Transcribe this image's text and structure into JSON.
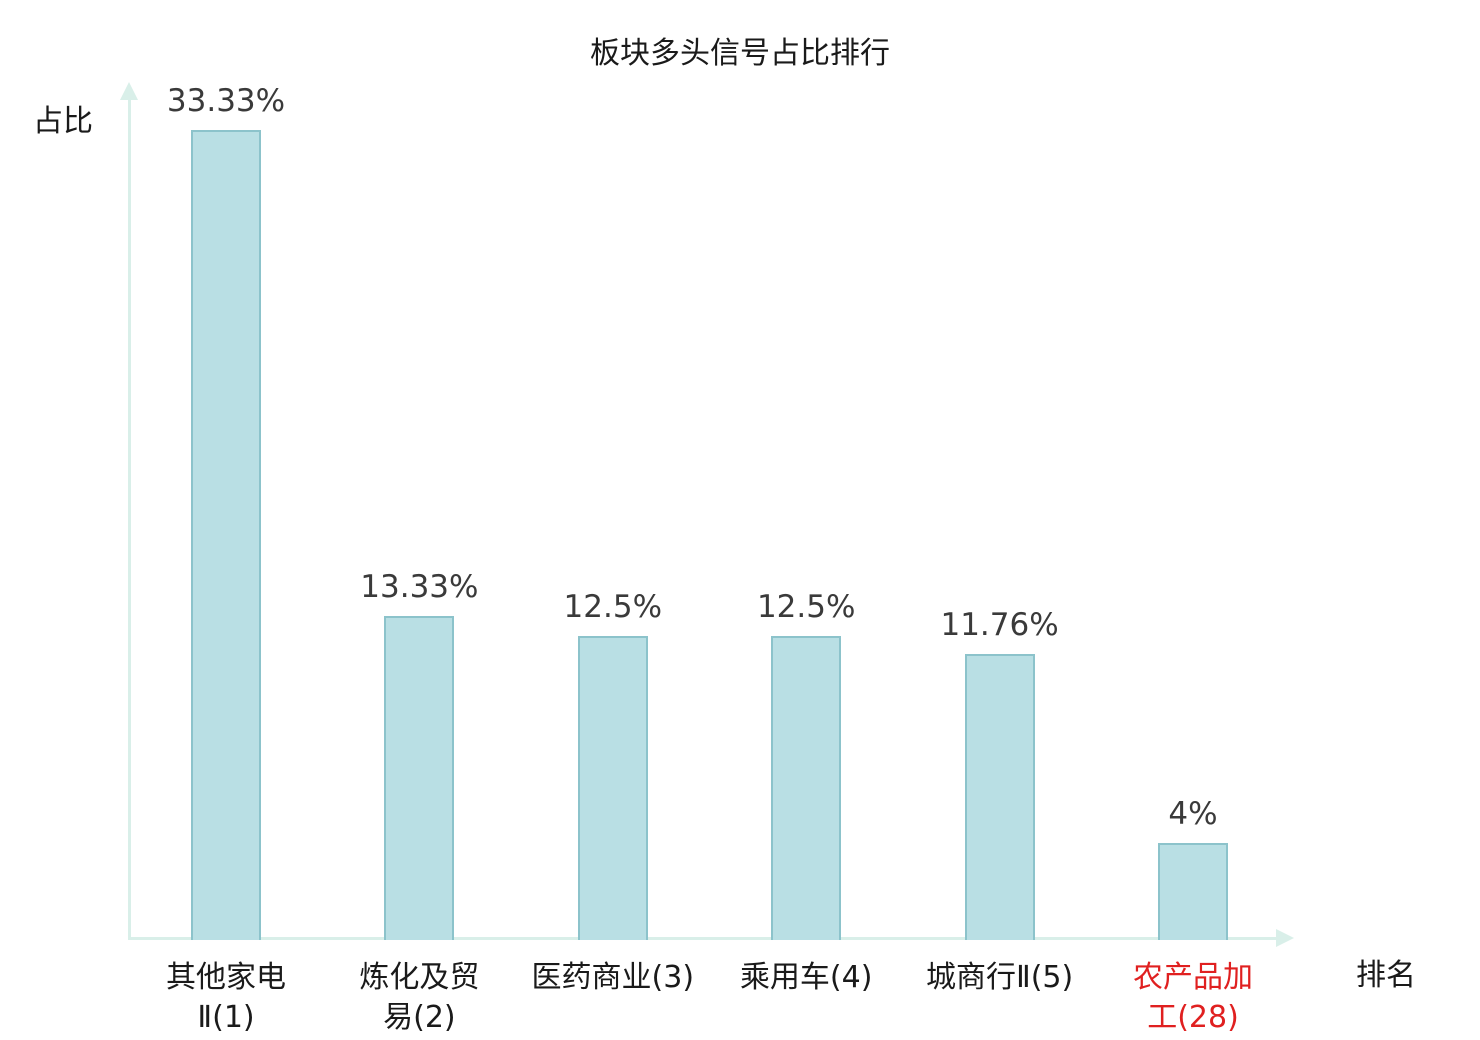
{
  "chart_data": {
    "type": "bar",
    "title": "板块多头信号占比排行",
    "ylabel": "占比",
    "xlabel": "排名",
    "categories": [
      "其他家电\nⅡ(1)",
      "炼化及贸\n易(2)",
      "医药商业(3)",
      "乘用车(4)",
      "城商行Ⅱ(5)",
      "农产品加\n工(28)"
    ],
    "values": [
      33.33,
      13.33,
      12.5,
      12.5,
      11.76,
      4
    ],
    "value_labels": [
      "33.33%",
      "13.33%",
      "12.5%",
      "12.5%",
      "11.76%",
      "4%"
    ],
    "highlight_index": 5,
    "ylim": [
      0,
      35
    ],
    "grid": false,
    "legend": "none",
    "colors": {
      "bar_fill": "#b9dfe4",
      "bar_border": "#8cc3cb",
      "axis": "#d9efe9",
      "value_text": "#3a3a3a",
      "category_text": "#1a1a1a",
      "highlight_text": "#e02020",
      "background": "#ffffff"
    }
  }
}
